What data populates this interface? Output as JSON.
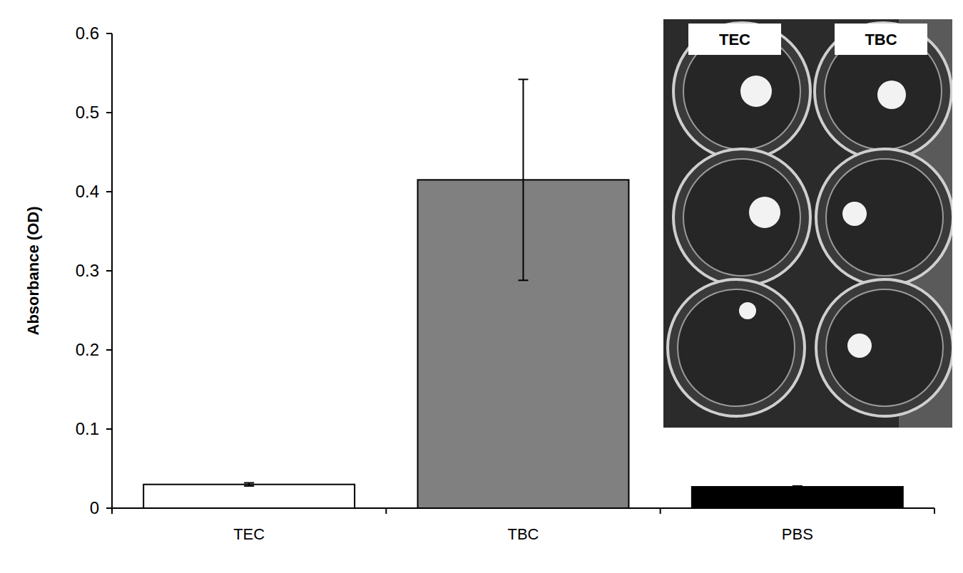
{
  "chart_data": {
    "type": "bar",
    "y_label": "Absorbance (OD)",
    "categories": [
      "TEC",
      "TBC",
      "PBS"
    ],
    "values": [
      0.03,
      0.415,
      0.027
    ],
    "errors": [
      0.002,
      0.127,
      0.001
    ],
    "colors": [
      "#ffffff",
      "#808080",
      "#000000"
    ],
    "ylim": [
      0,
      0.6
    ],
    "yticks": [
      0,
      0.1,
      0.2,
      0.3,
      0.4,
      0.5,
      0.6
    ],
    "grid": false,
    "annotations": [
      "TEC",
      "TBC"
    ]
  }
}
